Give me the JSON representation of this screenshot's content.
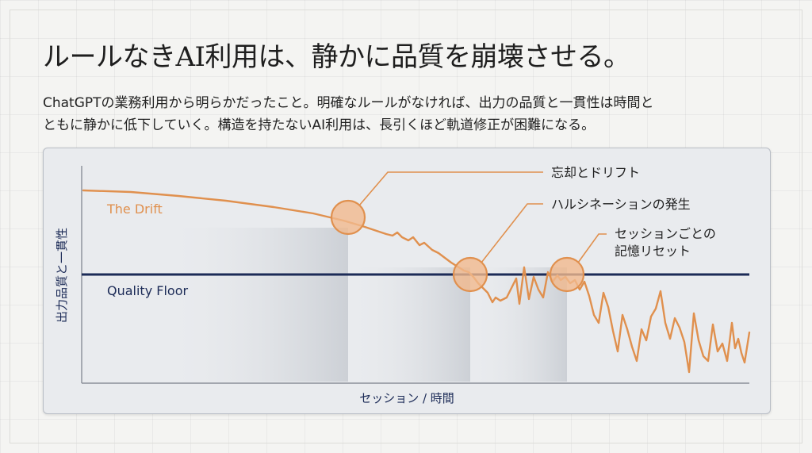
{
  "title": "ルールなきAI利用は、静かに品質を崩壊させる。",
  "subtitle": {
    "line1": "ChatGPTの業務利用から明らかだったこと。明確なルールがなければ、出力の品質と一貫性は時間と",
    "line2": "ともに静かに低下していく。構造を持たないAI利用は、長引くほど軌道修正が困難になる。"
  },
  "diagram": {
    "y_axis_label": "出力品質と一貫性",
    "x_axis_label": "セッション / 時間",
    "drift_label": "The Drift",
    "floor_label": "Quality Floor",
    "callouts": [
      {
        "lines": [
          "忘却とドリフト"
        ]
      },
      {
        "lines": [
          "ハルシネーションの発生"
        ]
      },
      {
        "lines": [
          "セッションごとの",
          "記憶リセット"
        ]
      }
    ]
  },
  "colors": {
    "drift": "#e0904e",
    "floor": "#1c2b57",
    "callout_fill": "#f1b98d",
    "axis_text": "#1c2b57"
  }
}
